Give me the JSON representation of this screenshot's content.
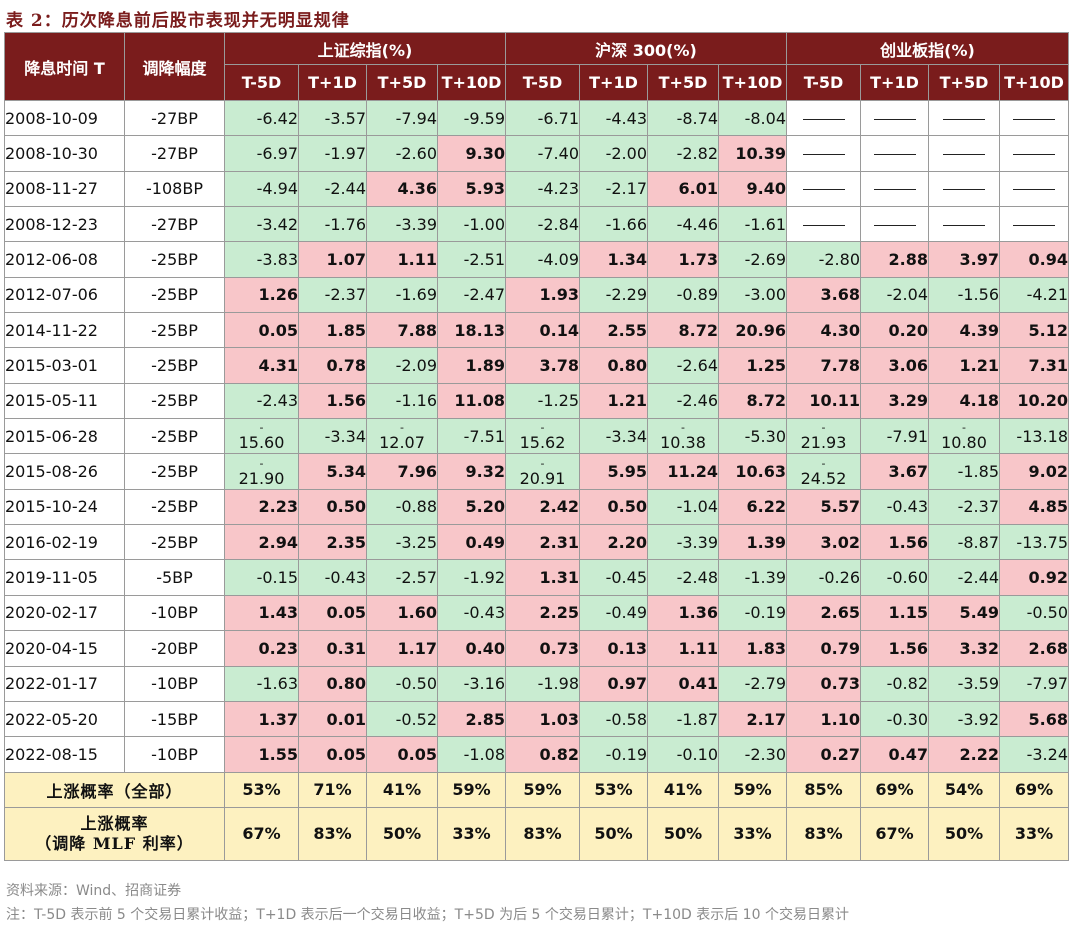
{
  "title": "表 2：历次降息前后股市表现并无明显规律",
  "header": {
    "col_date": "降息时间 T",
    "col_cut": "调降幅度",
    "groups": [
      "上证综指(%)",
      "沪深 300(%)",
      "创业板指(%)"
    ],
    "sub": [
      "T-5D",
      "T+1D",
      "T+5D",
      "T+10D"
    ]
  },
  "rows": [
    {
      "date": "2008-10-09",
      "cut": "-27BP",
      "vals": [
        "-6.42",
        "-3.57",
        "-7.94",
        "-9.59",
        "-6.71",
        "-4.43",
        "-8.74",
        "-8.04",
        "——",
        "——",
        "——",
        "——"
      ]
    },
    {
      "date": "2008-10-30",
      "cut": "-27BP",
      "vals": [
        "-6.97",
        "-1.97",
        "-2.60",
        "9.30",
        "-7.40",
        "-2.00",
        "-2.82",
        "10.39",
        "——",
        "——",
        "——",
        "——"
      ]
    },
    {
      "date": "2008-11-27",
      "cut": "-108BP",
      "vals": [
        "-4.94",
        "-2.44",
        "4.36",
        "5.93",
        "-4.23",
        "-2.17",
        "6.01",
        "9.40",
        "——",
        "——",
        "——",
        "——"
      ]
    },
    {
      "date": "2008-12-23",
      "cut": "-27BP",
      "vals": [
        "-3.42",
        "-1.76",
        "-3.39",
        "-1.00",
        "-2.84",
        "-1.66",
        "-4.46",
        "-1.61",
        "——",
        "——",
        "——",
        "——"
      ]
    },
    {
      "date": "2012-06-08",
      "cut": "-25BP",
      "vals": [
        "-3.83",
        "1.07",
        "1.11",
        "-2.51",
        "-4.09",
        "1.34",
        "1.73",
        "-2.69",
        "-2.80",
        "2.88",
        "3.97",
        "0.94"
      ]
    },
    {
      "date": "2012-07-06",
      "cut": "-25BP",
      "vals": [
        "1.26",
        "-2.37",
        "-1.69",
        "-2.47",
        "1.93",
        "-2.29",
        "-0.89",
        "-3.00",
        "3.68",
        "-2.04",
        "-1.56",
        "-4.21"
      ]
    },
    {
      "date": "2014-11-22",
      "cut": "-25BP",
      "vals": [
        "0.05",
        "1.85",
        "7.88",
        "18.13",
        "0.14",
        "2.55",
        "8.72",
        "20.96",
        "4.30",
        "0.20",
        "4.39",
        "5.12"
      ]
    },
    {
      "date": "2015-03-01",
      "cut": "-25BP",
      "vals": [
        "4.31",
        "0.78",
        "-2.09",
        "1.89",
        "3.78",
        "0.80",
        "-2.64",
        "1.25",
        "7.78",
        "3.06",
        "1.21",
        "7.31"
      ]
    },
    {
      "date": "2015-05-11",
      "cut": "-25BP",
      "vals": [
        "-2.43",
        "1.56",
        "-1.16",
        "11.08",
        "-1.25",
        "1.21",
        "-2.46",
        "8.72",
        "10.11",
        "3.29",
        "4.18",
        "10.20"
      ]
    },
    {
      "date": "2015-06-28",
      "cut": "-25BP",
      "vals": [
        "-15.60",
        "-3.34",
        "-12.07",
        "-7.51",
        "-15.62",
        "-3.34",
        "-10.38",
        "-5.30",
        "-21.93",
        "-7.91",
        "-10.80",
        "-13.18"
      ]
    },
    {
      "date": "2015-08-26",
      "cut": "-25BP",
      "vals": [
        "-21.90",
        "5.34",
        "7.96",
        "9.32",
        "-20.91",
        "5.95",
        "11.24",
        "10.63",
        "-24.52",
        "3.67",
        "-1.85",
        "9.02"
      ]
    },
    {
      "date": "2015-10-24",
      "cut": "-25BP",
      "vals": [
        "2.23",
        "0.50",
        "-0.88",
        "5.20",
        "2.42",
        "0.50",
        "-1.04",
        "6.22",
        "5.57",
        "-0.43",
        "-2.37",
        "4.85"
      ]
    },
    {
      "date": "2016-02-19",
      "cut": "-25BP",
      "vals": [
        "2.94",
        "2.35",
        "-3.25",
        "0.49",
        "2.31",
        "2.20",
        "-3.39",
        "1.39",
        "3.02",
        "1.56",
        "-8.87",
        "-13.75"
      ]
    },
    {
      "date": "2019-11-05",
      "cut": "-5BP",
      "vals": [
        "-0.15",
        "-0.43",
        "-2.57",
        "-1.92",
        "1.31",
        "-0.45",
        "-2.48",
        "-1.39",
        "-0.26",
        "-0.60",
        "-2.44",
        "0.92"
      ]
    },
    {
      "date": "2020-02-17",
      "cut": "-10BP",
      "vals": [
        "1.43",
        "0.05",
        "1.60",
        "-0.43",
        "2.25",
        "-0.49",
        "1.36",
        "-0.19",
        "2.65",
        "1.15",
        "5.49",
        "-0.50"
      ]
    },
    {
      "date": "2020-04-15",
      "cut": "-20BP",
      "vals": [
        "0.23",
        "0.31",
        "1.17",
        "0.40",
        "0.73",
        "0.13",
        "1.11",
        "1.83",
        "0.79",
        "1.56",
        "3.32",
        "2.68"
      ]
    },
    {
      "date": "2022-01-17",
      "cut": "-10BP",
      "vals": [
        "-1.63",
        "0.80",
        "-0.50",
        "-3.16",
        "-1.98",
        "0.97",
        "0.41",
        "-2.79",
        "0.73",
        "-0.82",
        "-3.59",
        "-7.97"
      ]
    },
    {
      "date": "2022-05-20",
      "cut": "-15BP",
      "vals": [
        "1.37",
        "0.01",
        "-0.52",
        "2.85",
        "1.03",
        "-0.58",
        "-1.87",
        "2.17",
        "1.10",
        "-0.30",
        "-3.92",
        "5.68"
      ]
    },
    {
      "date": "2022-08-15",
      "cut": "-10BP",
      "vals": [
        "1.55",
        "0.05",
        "0.05",
        "-1.08",
        "0.82",
        "-0.19",
        "-0.10",
        "-2.30",
        "0.27",
        "0.47",
        "2.22",
        "-3.24"
      ]
    }
  ],
  "summary": [
    {
      "label": "上涨概率（全部）",
      "vals": [
        "53%",
        "71%",
        "41%",
        "59%",
        "59%",
        "53%",
        "41%",
        "59%",
        "85%",
        "69%",
        "54%",
        "69%"
      ]
    },
    {
      "label_line1": "上涨概率",
      "label_line2": "（调降 MLF 利率）",
      "vals": [
        "67%",
        "83%",
        "50%",
        "33%",
        "83%",
        "50%",
        "50%",
        "33%",
        "83%",
        "67%",
        "50%",
        "33%"
      ]
    }
  ],
  "footer": {
    "source": "资料来源：Wind、招商证券",
    "note": "注：T-5D 表示前 5 个交易日累计收益；T+1D 表示后一个交易日收益；T+5D 为后 5 个交易日累计；T+10D 表示后 10 个交易日累计"
  },
  "colors": {
    "header_bg": "#7a1c1c",
    "positive": "#f8c6c9",
    "negative": "#c9ecd1",
    "summary": "#fdf1c0"
  }
}
